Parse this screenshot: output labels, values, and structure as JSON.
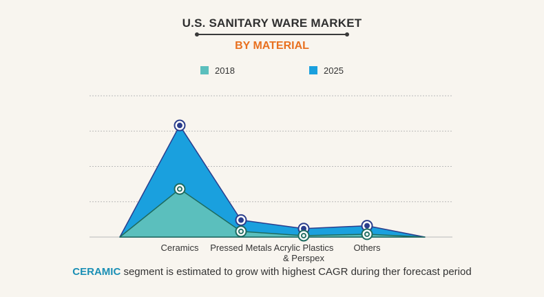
{
  "title": "U.S. SANITARY WARE MARKET",
  "subtitle": "BY MATERIAL",
  "footer": {
    "highlight": "CERAMIC",
    "text": " segment is estimated to grow with highest CAGR during ther forecast period"
  },
  "colors": {
    "subtitle": "#e8701f",
    "highlight": "#1a8fb5",
    "series_2018": "#5bbfbd",
    "series_2025": "#1aa0de",
    "marker_2018": "#1e6b5f",
    "marker_2025": "#2a3d8c",
    "grid": "#b9b9b9"
  },
  "chart_data": {
    "type": "area",
    "categories": [
      "Ceramics",
      "Pressed Metals",
      "Acrylic Plastics & Perspex",
      "Others"
    ],
    "category_lines": [
      [
        "Ceramics"
      ],
      [
        "Pressed Metals"
      ],
      [
        "Acrylic Plastics",
        "& Perspex"
      ],
      [
        "Others"
      ]
    ],
    "series": [
      {
        "name": "2018",
        "values": [
          34,
          4,
          1,
          2
        ]
      },
      {
        "name": "2025",
        "values": [
          79,
          12,
          6,
          8
        ]
      }
    ],
    "ylim": [
      0,
      100
    ],
    "grid": true,
    "legend": "top-center"
  }
}
